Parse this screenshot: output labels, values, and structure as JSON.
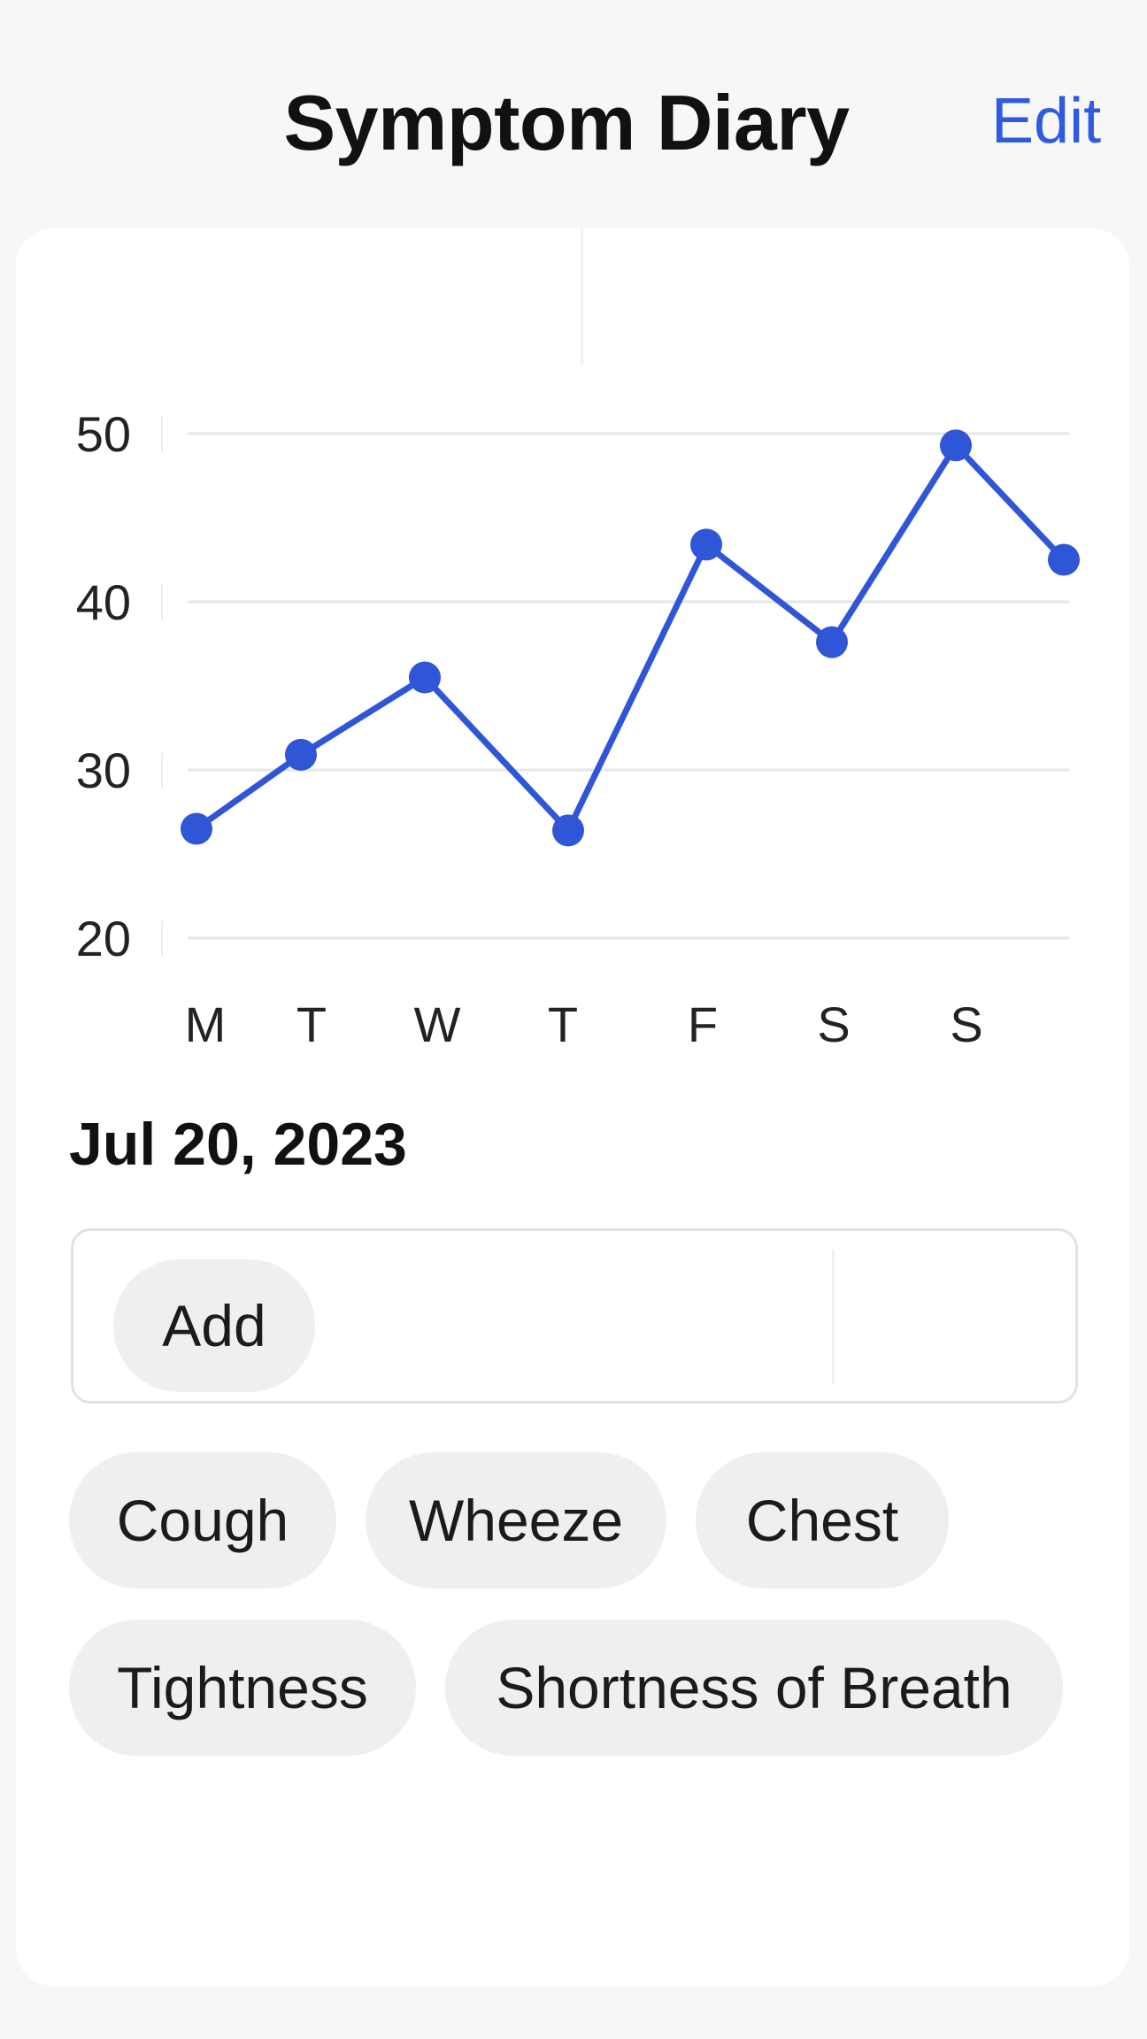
{
  "header": {
    "title": "Symptom Diary",
    "edit_label": "Edit"
  },
  "chart_data": {
    "type": "line",
    "categories": [
      "M",
      "T",
      "W",
      "T",
      "F",
      "S",
      "S",
      ""
    ],
    "series": [
      {
        "values": [
          26.5,
          30.9,
          35.5,
          26.4,
          43.4,
          37.6,
          49.3,
          42.5
        ]
      }
    ],
    "ylim": [
      20,
      50
    ],
    "yticks": [
      20,
      30,
      40,
      50
    ],
    "grid": true,
    "color": "#3056d8"
  },
  "date_heading": "Jul 20, 2023",
  "entry": {
    "add_label": "Add"
  },
  "symptoms": [
    {
      "label": "Cough"
    },
    {
      "label": "Wheeze"
    },
    {
      "label": "Chest"
    },
    {
      "label": "Tightness"
    },
    {
      "label": "Shortness of Breath"
    }
  ]
}
